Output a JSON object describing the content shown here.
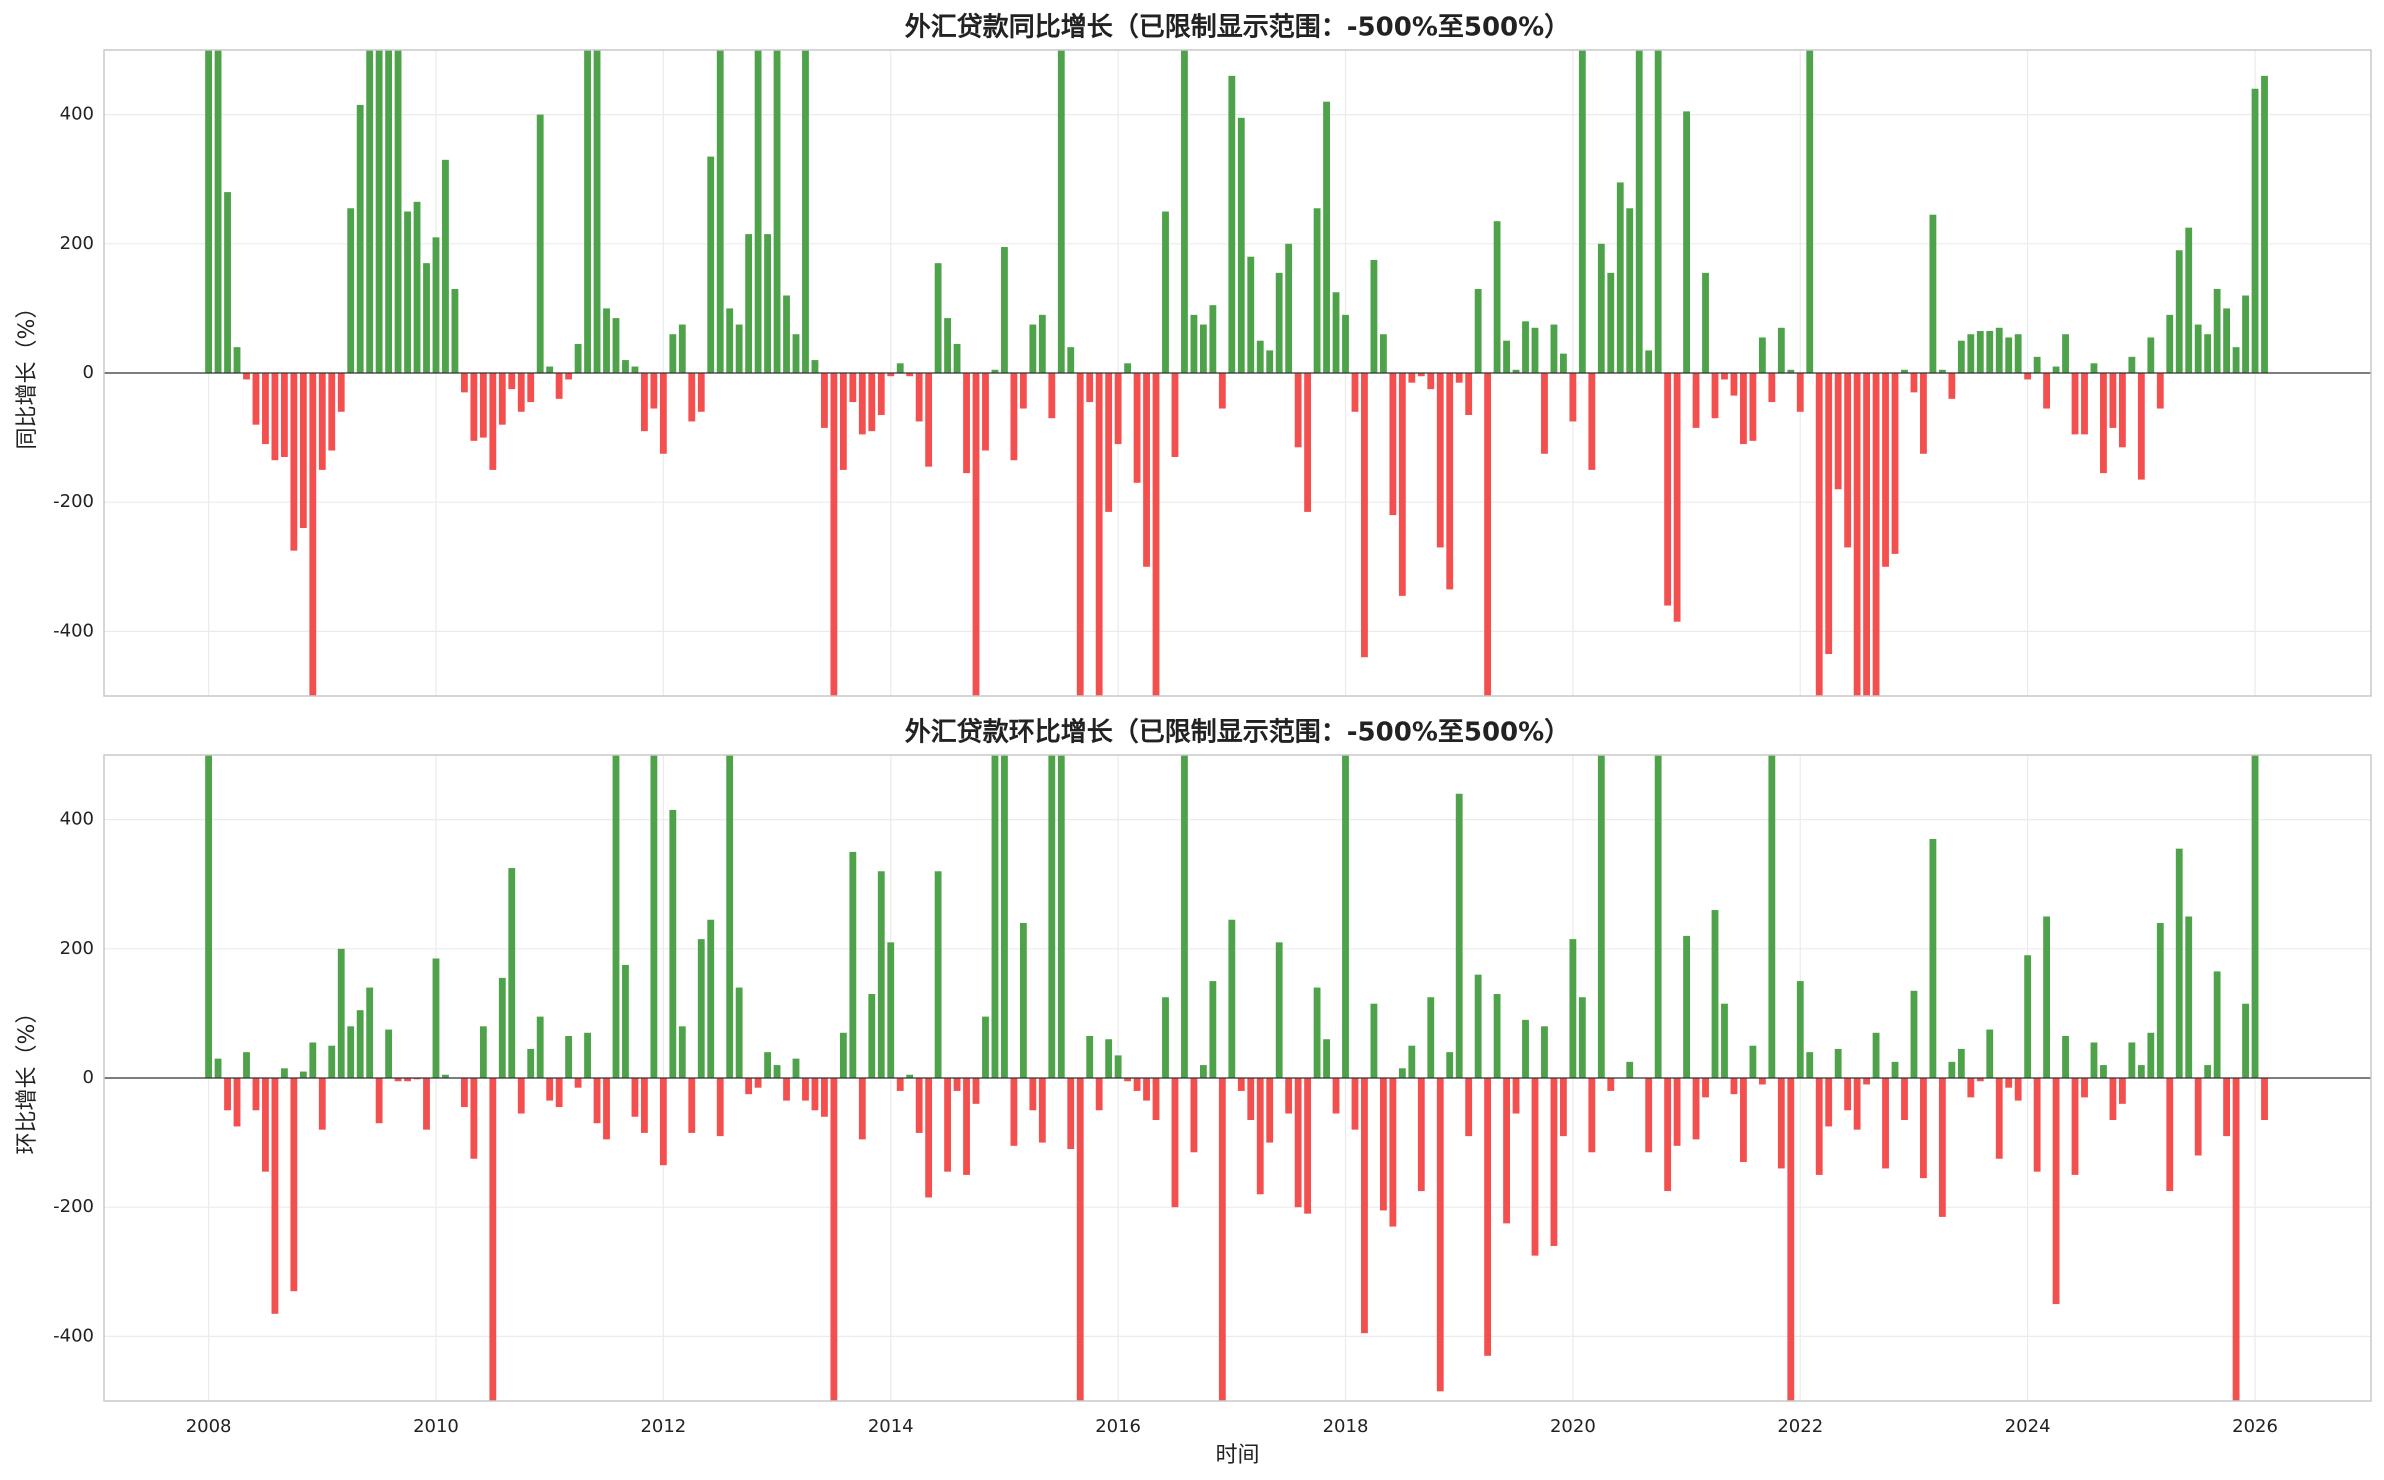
{
  "chart_data": [
    {
      "type": "bar",
      "title": "外汇贷款同比增长（已限制显示范围：-500%至500%）",
      "ylabel": "同比增长（%）",
      "x": [
        "2008-01",
        "2008-02",
        "2008-03",
        "2008-04",
        "2008-05",
        "2008-06",
        "2008-07",
        "2008-08",
        "2008-09",
        "2008-10",
        "2008-11",
        "2008-12",
        "2009-01",
        "2009-02",
        "2009-03",
        "2009-04",
        "2009-05",
        "2009-06",
        "2009-07",
        "2009-08",
        "2009-09",
        "2009-10",
        "2009-11",
        "2009-12",
        "2010-01",
        "2010-02",
        "2010-03",
        "2010-04",
        "2010-05",
        "2010-06",
        "2010-07",
        "2010-08",
        "2010-09",
        "2010-10",
        "2010-11",
        "2010-12",
        "2011-01",
        "2011-02",
        "2011-03",
        "2011-04",
        "2011-05",
        "2011-06",
        "2011-07",
        "2011-08",
        "2011-09",
        "2011-10",
        "2011-11",
        "2011-12",
        "2012-01",
        "2012-02",
        "2012-03",
        "2012-04",
        "2012-05",
        "2012-06",
        "2012-07",
        "2012-08",
        "2012-09",
        "2012-10",
        "2012-11",
        "2012-12",
        "2013-01",
        "2013-02",
        "2013-03",
        "2013-04",
        "2013-05",
        "2013-06",
        "2013-07",
        "2013-08",
        "2013-09",
        "2013-10",
        "2013-11",
        "2013-12",
        "2014-01",
        "2014-02",
        "2014-03",
        "2014-04",
        "2014-05",
        "2014-06",
        "2014-07",
        "2014-08",
        "2014-09",
        "2014-10",
        "2014-11",
        "2014-12",
        "2015-01",
        "2015-02",
        "2015-03",
        "2015-04",
        "2015-05",
        "2015-06",
        "2015-07",
        "2015-08",
        "2015-09",
        "2015-10",
        "2015-11",
        "2015-12",
        "2016-01",
        "2016-02",
        "2016-03",
        "2016-04",
        "2016-05",
        "2016-06",
        "2016-07",
        "2016-08",
        "2016-09",
        "2016-10",
        "2016-11",
        "2016-12",
        "2017-01",
        "2017-02",
        "2017-03",
        "2017-04",
        "2017-05",
        "2017-06",
        "2017-07",
        "2017-08",
        "2017-09",
        "2017-10",
        "2017-11",
        "2017-12",
        "2018-01",
        "2018-02",
        "2018-03",
        "2018-04",
        "2018-05",
        "2018-06",
        "2018-07",
        "2018-08",
        "2018-09",
        "2018-10",
        "2018-11",
        "2018-12",
        "2019-01",
        "2019-02",
        "2019-03",
        "2019-04",
        "2019-05",
        "2019-06",
        "2019-07",
        "2019-08",
        "2019-09",
        "2019-10",
        "2019-11",
        "2019-12",
        "2020-01",
        "2020-02",
        "2020-03",
        "2020-04",
        "2020-05",
        "2020-06",
        "2020-07",
        "2020-08",
        "2020-09",
        "2020-10",
        "2020-11",
        "2020-12",
        "2021-01",
        "2021-02",
        "2021-03",
        "2021-04",
        "2021-05",
        "2021-06",
        "2021-07",
        "2021-08",
        "2021-09",
        "2021-10",
        "2021-11",
        "2021-12",
        "2022-01",
        "2022-02",
        "2022-03",
        "2022-04",
        "2022-05",
        "2022-06",
        "2022-07",
        "2022-08",
        "2022-09",
        "2022-10",
        "2022-11",
        "2022-12",
        "2023-01",
        "2023-02",
        "2023-03",
        "2023-04",
        "2023-05",
        "2023-06",
        "2023-07",
        "2023-08",
        "2023-09",
        "2023-10",
        "2023-11",
        "2023-12",
        "2024-01",
        "2024-02",
        "2024-03",
        "2024-04",
        "2024-05",
        "2024-06",
        "2024-07",
        "2024-08",
        "2024-09",
        "2024-10",
        "2024-11",
        "2024-12",
        "2025-01",
        "2025-02",
        "2025-03",
        "2025-04",
        "2025-05",
        "2025-06",
        "2025-07",
        "2025-08",
        "2025-09",
        "2025-10",
        "2025-11",
        "2025-12",
        "2026-01",
        "2026-02"
      ],
      "values": [
        500,
        500,
        280,
        40,
        -10,
        -80,
        -110,
        -135,
        -130,
        -275,
        -240,
        -500,
        -150,
        -120,
        -60,
        255,
        415,
        500,
        500,
        500,
        500,
        250,
        265,
        170,
        210,
        330,
        130,
        -30,
        -105,
        -100,
        -150,
        -80,
        -25,
        -60,
        -45,
        400,
        10,
        -40,
        -10,
        45,
        500,
        500,
        100,
        85,
        20,
        10,
        -90,
        -55,
        -125,
        60,
        75,
        -75,
        -60,
        335,
        500,
        100,
        75,
        215,
        500,
        215,
        500,
        120,
        60,
        500,
        20,
        -85,
        -500,
        -150,
        -45,
        -95,
        -90,
        -65,
        -5,
        15,
        -5,
        -75,
        -145,
        170,
        85,
        45,
        -155,
        -500,
        -120,
        5,
        195,
        -135,
        -55,
        75,
        90,
        -70,
        500,
        40,
        -500,
        -45,
        -500,
        -215,
        -110,
        15,
        -170,
        -300,
        -500,
        250,
        -130,
        500,
        90,
        75,
        105,
        -55,
        460,
        395,
        180,
        50,
        35,
        155,
        200,
        -115,
        -215,
        255,
        420,
        125,
        90,
        -60,
        -440,
        175,
        60,
        -220,
        -345,
        -15,
        -5,
        -25,
        -270,
        -335,
        -15,
        -65,
        130,
        -500,
        235,
        50,
        5,
        80,
        70,
        -125,
        75,
        30,
        -75,
        500,
        -150,
        200,
        155,
        295,
        255,
        500,
        35,
        500,
        -360,
        -385,
        405,
        -85,
        155,
        -70,
        -10,
        -35,
        -110,
        -105,
        55,
        -45,
        70,
        5,
        -60,
        500,
        -500,
        -435,
        -180,
        -270,
        -500,
        -500,
        -500,
        -300,
        -280,
        5,
        -30,
        -125,
        245,
        5,
        -40,
        50,
        60,
        65,
        65,
        70,
        55,
        60,
        -10,
        25,
        -55,
        10,
        60,
        -95,
        -95,
        15,
        -155,
        -85,
        -115,
        25,
        -165,
        55,
        -55,
        90,
        190,
        225,
        75,
        60,
        130,
        100,
        40,
        120,
        440,
        460
      ],
      "positive_color": "#4ea24a",
      "negative_color": "#f44f4f",
      "xlim": [
        2007.08,
        2027.02
      ],
      "xticks": [
        2008,
        2010,
        2012,
        2014,
        2016,
        2018,
        2020,
        2022,
        2024,
        2026
      ],
      "show_xtick_labels": false,
      "ylim": [
        -500,
        500
      ],
      "yticks": [
        -400,
        -200,
        0,
        200,
        400
      ],
      "grid": true
    },
    {
      "type": "bar",
      "title": "外汇贷款环比增长（已限制显示范围：-500%至500%）",
      "ylabel": "环比增长（%）",
      "xlabel": "时间",
      "x": [
        "2008-01",
        "2008-02",
        "2008-03",
        "2008-04",
        "2008-05",
        "2008-06",
        "2008-07",
        "2008-08",
        "2008-09",
        "2008-10",
        "2008-11",
        "2008-12",
        "2009-01",
        "2009-02",
        "2009-03",
        "2009-04",
        "2009-05",
        "2009-06",
        "2009-07",
        "2009-08",
        "2009-09",
        "2009-10",
        "2009-11",
        "2009-12",
        "2010-01",
        "2010-02",
        "2010-03",
        "2010-04",
        "2010-05",
        "2010-06",
        "2010-07",
        "2010-08",
        "2010-09",
        "2010-10",
        "2010-11",
        "2010-12",
        "2011-01",
        "2011-02",
        "2011-03",
        "2011-04",
        "2011-05",
        "2011-06",
        "2011-07",
        "2011-08",
        "2011-09",
        "2011-10",
        "2011-11",
        "2011-12",
        "2012-01",
        "2012-02",
        "2012-03",
        "2012-04",
        "2012-05",
        "2012-06",
        "2012-07",
        "2012-08",
        "2012-09",
        "2012-10",
        "2012-11",
        "2012-12",
        "2013-01",
        "2013-02",
        "2013-03",
        "2013-04",
        "2013-05",
        "2013-06",
        "2013-07",
        "2013-08",
        "2013-09",
        "2013-10",
        "2013-11",
        "2013-12",
        "2014-01",
        "2014-02",
        "2014-03",
        "2014-04",
        "2014-05",
        "2014-06",
        "2014-07",
        "2014-08",
        "2014-09",
        "2014-10",
        "2014-11",
        "2014-12",
        "2015-01",
        "2015-02",
        "2015-03",
        "2015-04",
        "2015-05",
        "2015-06",
        "2015-07",
        "2015-08",
        "2015-09",
        "2015-10",
        "2015-11",
        "2015-12",
        "2016-01",
        "2016-02",
        "2016-03",
        "2016-04",
        "2016-05",
        "2016-06",
        "2016-07",
        "2016-08",
        "2016-09",
        "2016-10",
        "2016-11",
        "2016-12",
        "2017-01",
        "2017-02",
        "2017-03",
        "2017-04",
        "2017-05",
        "2017-06",
        "2017-07",
        "2017-08",
        "2017-09",
        "2017-10",
        "2017-11",
        "2017-12",
        "2018-01",
        "2018-02",
        "2018-03",
        "2018-04",
        "2018-05",
        "2018-06",
        "2018-07",
        "2018-08",
        "2018-09",
        "2018-10",
        "2018-11",
        "2018-12",
        "2019-01",
        "2019-02",
        "2019-03",
        "2019-04",
        "2019-05",
        "2019-06",
        "2019-07",
        "2019-08",
        "2019-09",
        "2019-10",
        "2019-11",
        "2019-12",
        "2020-01",
        "2020-02",
        "2020-03",
        "2020-04",
        "2020-05",
        "2020-06",
        "2020-07",
        "2020-08",
        "2020-09",
        "2020-10",
        "2020-11",
        "2020-12",
        "2021-01",
        "2021-02",
        "2021-03",
        "2021-04",
        "2021-05",
        "2021-06",
        "2021-07",
        "2021-08",
        "2021-09",
        "2021-10",
        "2021-11",
        "2021-12",
        "2022-01",
        "2022-02",
        "2022-03",
        "2022-04",
        "2022-05",
        "2022-06",
        "2022-07",
        "2022-08",
        "2022-09",
        "2022-10",
        "2022-11",
        "2022-12",
        "2023-01",
        "2023-02",
        "2023-03",
        "2023-04",
        "2023-05",
        "2023-06",
        "2023-07",
        "2023-08",
        "2023-09",
        "2023-10",
        "2023-11",
        "2023-12",
        "2024-01",
        "2024-02",
        "2024-03",
        "2024-04",
        "2024-05",
        "2024-06",
        "2024-07",
        "2024-08",
        "2024-09",
        "2024-10",
        "2024-11",
        "2024-12",
        "2025-01",
        "2025-02",
        "2025-03",
        "2025-04",
        "2025-05",
        "2025-06",
        "2025-07",
        "2025-08",
        "2025-09",
        "2025-10",
        "2025-11",
        "2025-12",
        "2026-01",
        "2026-02"
      ],
      "values": [
        500,
        30,
        -50,
        -75,
        40,
        -50,
        -145,
        -365,
        15,
        -330,
        10,
        55,
        -80,
        50,
        200,
        80,
        105,
        140,
        -70,
        75,
        -5,
        -5,
        -2,
        -80,
        185,
        5,
        0,
        -45,
        -125,
        80,
        -500,
        155,
        325,
        -55,
        45,
        95,
        -35,
        -45,
        65,
        -15,
        70,
        -70,
        -95,
        500,
        175,
        -60,
        -85,
        500,
        -135,
        415,
        80,
        -85,
        215,
        245,
        -90,
        500,
        140,
        -25,
        -15,
        40,
        20,
        -35,
        30,
        -35,
        -50,
        -60,
        -500,
        70,
        350,
        -95,
        130,
        320,
        210,
        -20,
        5,
        -85,
        -185,
        320,
        -145,
        -20,
        -150,
        -40,
        95,
        500,
        500,
        -105,
        240,
        -50,
        -100,
        500,
        500,
        -110,
        -500,
        65,
        -50,
        60,
        35,
        -5,
        -20,
        -35,
        -65,
        125,
        -200,
        500,
        -115,
        20,
        150,
        -500,
        245,
        -20,
        -65,
        -180,
        -100,
        210,
        -55,
        -200,
        -210,
        140,
        60,
        -55,
        500,
        -80,
        -395,
        115,
        -205,
        -230,
        15,
        50,
        -175,
        125,
        -485,
        40,
        440,
        -90,
        160,
        -430,
        130,
        -225,
        -55,
        90,
        -275,
        80,
        -260,
        -90,
        215,
        125,
        -115,
        500,
        -20,
        0,
        25,
        0,
        -115,
        500,
        -175,
        -105,
        220,
        -95,
        -30,
        260,
        115,
        -25,
        -130,
        50,
        -10,
        500,
        -140,
        -500,
        150,
        40,
        -150,
        -75,
        45,
        -50,
        -80,
        -10,
        70,
        -140,
        25,
        -65,
        135,
        -155,
        370,
        -215,
        25,
        45,
        -30,
        -5,
        75,
        -125,
        -15,
        -35,
        190,
        -145,
        250,
        -350,
        65,
        -150,
        -30,
        55,
        20,
        -65,
        -40,
        55,
        20,
        70,
        240,
        -175,
        355,
        250,
        -120,
        20,
        165,
        -90,
        -500,
        115,
        500,
        -65
      ],
      "positive_color": "#4ea24a",
      "negative_color": "#f44f4f",
      "xlim": [
        2007.08,
        2027.02
      ],
      "xticks": [
        2008,
        2010,
        2012,
        2014,
        2016,
        2018,
        2020,
        2022,
        2024,
        2026
      ],
      "show_xtick_labels": true,
      "ylim": [
        -500,
        500
      ],
      "yticks": [
        -400,
        -200,
        0,
        200,
        400
      ],
      "grid": true
    }
  ]
}
